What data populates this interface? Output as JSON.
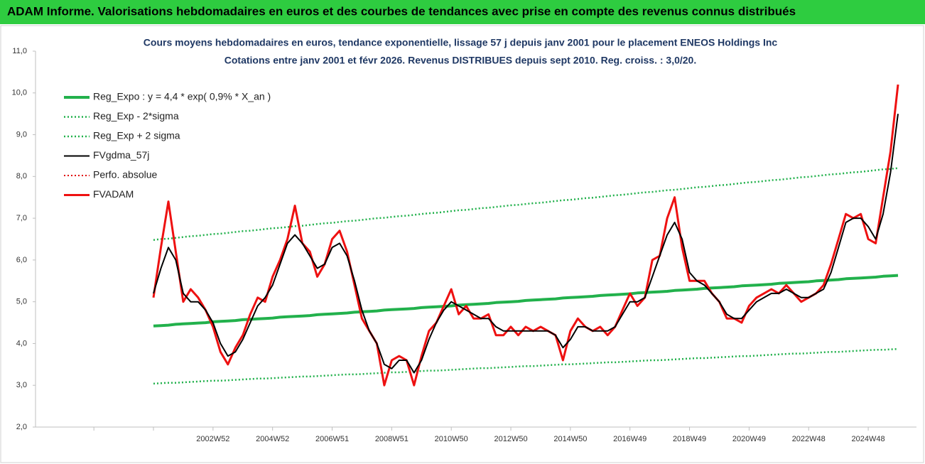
{
  "chart_data": {
    "type": "line",
    "header": "ADAM Informe. Valorisations hebdomadaires en euros et des courbes de tendances avec prise en compte des revenus connus distribués",
    "title": "Cours moyens hebdomadaires en euros, tendance exponentielle, lissage 57 j depuis janv 2001 pour le placement ENEOS Holdings Inc",
    "subtitle": "Cotations entre janv 2001 et févr 2026. Revenus DISTRIBUES depuis sept 2010. Reg. croiss. : 3,0/20.",
    "categories": [
      null,
      null,
      null,
      null,
      null,
      null,
      null,
      null,
      "2002W52",
      null,
      null,
      null,
      null,
      null,
      null,
      null,
      "2004W52",
      null,
      null,
      null,
      null,
      null,
      null,
      null,
      "2006W51",
      null,
      null,
      null,
      null,
      null,
      null,
      null,
      "2008W51",
      null,
      null,
      null,
      null,
      null,
      null,
      null,
      "2010W50",
      null,
      null,
      null,
      null,
      null,
      null,
      null,
      "2012W50",
      null,
      null,
      null,
      null,
      null,
      null,
      null,
      "2014W50",
      null,
      null,
      null,
      null,
      null,
      null,
      null,
      "2016W49",
      null,
      null,
      null,
      null,
      null,
      null,
      null,
      "2018W49",
      null,
      null,
      null,
      null,
      null,
      null,
      null,
      "2020W49",
      null,
      null,
      null,
      null,
      null,
      null,
      null,
      "2022W48",
      null,
      null,
      null,
      null,
      null,
      null,
      null,
      "2024W48",
      null,
      null,
      null,
      null
    ],
    "ylim": [
      2,
      11
    ],
    "yticks": [
      {
        "value": 2,
        "label": "2,0"
      },
      {
        "value": 3,
        "label": "3,0"
      },
      {
        "value": 4,
        "label": "4,0"
      },
      {
        "value": 5,
        "label": "5,0"
      },
      {
        "value": 6,
        "label": "6,0"
      },
      {
        "value": 7,
        "label": "7,0"
      },
      {
        "value": 8,
        "label": "8,0"
      },
      {
        "value": 9,
        "label": "9,0"
      },
      {
        "value": 10,
        "label": "10,0"
      },
      {
        "value": 11,
        "label": "11,0"
      }
    ],
    "legend": "top-left",
    "series": [
      {
        "name": "Reg_Expo : y = 4,4 * exp( 0,9% *  X_an )",
        "color": "#22b14c",
        "line_style": "solid",
        "line_width": 4,
        "values": [
          4.42,
          4.43,
          4.44,
          4.46,
          4.47,
          4.48,
          4.49,
          4.5,
          4.52,
          4.53,
          4.54,
          4.55,
          4.57,
          4.58,
          4.59,
          4.6,
          4.61,
          4.63,
          4.64,
          4.65,
          4.66,
          4.67,
          4.69,
          4.7,
          4.71,
          4.72,
          4.73,
          4.75,
          4.76,
          4.77,
          4.78,
          4.8,
          4.81,
          4.82,
          4.83,
          4.84,
          4.86,
          4.87,
          4.88,
          4.89,
          4.9,
          4.92,
          4.93,
          4.94,
          4.95,
          4.96,
          4.98,
          4.99,
          5.0,
          5.01,
          5.03,
          5.04,
          5.05,
          5.06,
          5.07,
          5.09,
          5.1,
          5.11,
          5.12,
          5.13,
          5.15,
          5.16,
          5.17,
          5.18,
          5.19,
          5.21,
          5.22,
          5.23,
          5.24,
          5.25,
          5.27,
          5.28,
          5.29,
          5.3,
          5.32,
          5.33,
          5.34,
          5.35,
          5.36,
          5.38,
          5.39,
          5.4,
          5.41,
          5.42,
          5.44,
          5.45,
          5.46,
          5.47,
          5.48,
          5.5,
          5.51,
          5.52,
          5.53,
          5.55,
          5.56,
          5.57,
          5.58,
          5.59,
          5.61,
          5.62,
          5.63
        ]
      },
      {
        "name": "Reg_Exp - 2*sigma",
        "color": "#22b14c",
        "line_style": "dotted",
        "line_width": 2.5,
        "values": [
          3.04,
          3.05,
          3.06,
          3.06,
          3.07,
          3.08,
          3.09,
          3.1,
          3.11,
          3.11,
          3.12,
          3.13,
          3.14,
          3.15,
          3.16,
          3.16,
          3.17,
          3.18,
          3.19,
          3.2,
          3.21,
          3.21,
          3.22,
          3.23,
          3.24,
          3.25,
          3.26,
          3.26,
          3.27,
          3.28,
          3.29,
          3.3,
          3.31,
          3.31,
          3.32,
          3.33,
          3.34,
          3.35,
          3.35,
          3.36,
          3.37,
          3.38,
          3.39,
          3.4,
          3.41,
          3.41,
          3.42,
          3.43,
          3.44,
          3.45,
          3.46,
          3.46,
          3.47,
          3.48,
          3.49,
          3.5,
          3.5,
          3.51,
          3.52,
          3.53,
          3.54,
          3.55,
          3.55,
          3.56,
          3.57,
          3.58,
          3.59,
          3.6,
          3.6,
          3.61,
          3.62,
          3.63,
          3.64,
          3.65,
          3.65,
          3.66,
          3.67,
          3.68,
          3.69,
          3.7,
          3.7,
          3.71,
          3.72,
          3.73,
          3.74,
          3.75,
          3.76,
          3.76,
          3.77,
          3.78,
          3.79,
          3.8,
          3.8,
          3.81,
          3.82,
          3.83,
          3.84,
          3.85,
          3.85,
          3.86,
          3.87
        ]
      },
      {
        "name": "Reg_Exp + 2 sigma",
        "color": "#22b14c",
        "line_style": "dotted",
        "line_width": 2.5,
        "values": [
          6.48,
          6.5,
          6.51,
          6.53,
          6.55,
          6.57,
          6.58,
          6.6,
          6.62,
          6.63,
          6.65,
          6.67,
          6.69,
          6.7,
          6.72,
          6.74,
          6.76,
          6.77,
          6.79,
          6.81,
          6.82,
          6.84,
          6.86,
          6.88,
          6.89,
          6.91,
          6.93,
          6.94,
          6.96,
          6.98,
          7.0,
          7.01,
          7.03,
          7.05,
          7.06,
          7.08,
          7.1,
          7.12,
          7.13,
          7.15,
          7.17,
          7.19,
          7.2,
          7.22,
          7.24,
          7.25,
          7.27,
          7.29,
          7.31,
          7.32,
          7.34,
          7.36,
          7.37,
          7.39,
          7.41,
          7.43,
          7.44,
          7.46,
          7.48,
          7.49,
          7.51,
          7.53,
          7.55,
          7.56,
          7.58,
          7.6,
          7.62,
          7.63,
          7.65,
          7.67,
          7.68,
          7.7,
          7.72,
          7.74,
          7.75,
          7.77,
          7.79,
          7.8,
          7.82,
          7.84,
          7.86,
          7.87,
          7.89,
          7.91,
          7.92,
          7.94,
          7.96,
          7.98,
          7.99,
          8.01,
          8.03,
          8.05,
          8.06,
          8.08,
          8.1,
          8.11,
          8.13,
          8.15,
          8.17,
          8.18,
          8.2
        ]
      },
      {
        "name": "FVgdma_57j",
        "color": "#000000",
        "line_style": "solid",
        "line_width": 2,
        "values": [
          5.2,
          5.8,
          6.3,
          6.0,
          5.2,
          5.0,
          5.0,
          4.8,
          4.5,
          4.0,
          3.7,
          3.8,
          4.1,
          4.5,
          4.9,
          5.1,
          5.4,
          5.9,
          6.4,
          6.6,
          6.4,
          6.1,
          5.8,
          5.9,
          6.3,
          6.4,
          6.1,
          5.5,
          4.8,
          4.3,
          4.0,
          3.5,
          3.4,
          3.6,
          3.6,
          3.3,
          3.6,
          4.1,
          4.5,
          4.8,
          5.0,
          4.9,
          4.8,
          4.7,
          4.6,
          4.6,
          4.4,
          4.3,
          4.3,
          4.3,
          4.3,
          4.3,
          4.3,
          4.3,
          4.2,
          3.9,
          4.1,
          4.4,
          4.4,
          4.3,
          4.3,
          4.3,
          4.4,
          4.7,
          5.0,
          5.0,
          5.1,
          5.6,
          6.1,
          6.6,
          6.9,
          6.5,
          5.7,
          5.5,
          5.4,
          5.2,
          5.0,
          4.7,
          4.6,
          4.6,
          4.8,
          5.0,
          5.1,
          5.2,
          5.2,
          5.3,
          5.2,
          5.1,
          5.1,
          5.2,
          5.3,
          5.7,
          6.3,
          6.9,
          7.0,
          7.0,
          6.8,
          6.5,
          7.1,
          8.1,
          9.5
        ]
      },
      {
        "name": "Perfo. absolue",
        "color": "#e00000",
        "line_style": "dotted",
        "line_width": 2
      },
      {
        "name": "FVADAM",
        "color": "#ee1111",
        "line_style": "solid",
        "line_width": 3,
        "values": [
          5.1,
          6.3,
          7.4,
          6.2,
          5.0,
          5.3,
          5.1,
          4.8,
          4.4,
          3.8,
          3.5,
          3.9,
          4.2,
          4.7,
          5.1,
          5.0,
          5.6,
          6.0,
          6.5,
          7.3,
          6.4,
          6.2,
          5.6,
          5.9,
          6.5,
          6.7,
          6.2,
          5.4,
          4.6,
          4.3,
          4.0,
          3.0,
          3.6,
          3.7,
          3.6,
          3.0,
          3.7,
          4.3,
          4.5,
          4.9,
          5.3,
          4.7,
          4.9,
          4.6,
          4.6,
          4.7,
          4.2,
          4.2,
          4.4,
          4.2,
          4.4,
          4.3,
          4.4,
          4.3,
          4.2,
          3.6,
          4.3,
          4.6,
          4.4,
          4.3,
          4.4,
          4.2,
          4.4,
          4.8,
          5.2,
          4.9,
          5.1,
          6.0,
          6.1,
          7.0,
          7.5,
          6.3,
          5.5,
          5.5,
          5.5,
          5.2,
          5.0,
          4.6,
          4.6,
          4.5,
          4.9,
          5.1,
          5.2,
          5.3,
          5.2,
          5.4,
          5.2,
          5.0,
          5.1,
          5.2,
          5.4,
          5.9,
          6.5,
          7.1,
          7.0,
          7.1,
          6.5,
          6.4,
          7.5,
          8.6,
          10.2
        ]
      }
    ]
  }
}
